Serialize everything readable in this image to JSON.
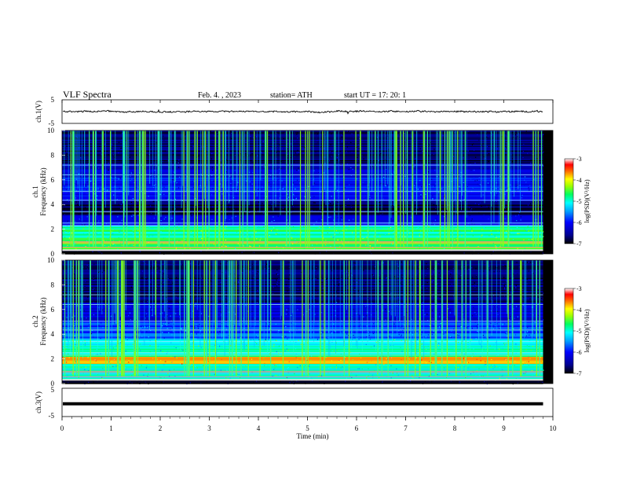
{
  "chart_data": {
    "type": "heatmap",
    "header": {
      "title": "VLF  Spectra",
      "date": "Feb. 4.  , 2023",
      "station": "station= ATH",
      "start": "start  UT  =    17: 20: 1"
    },
    "xlabel": "Time  (min)",
    "xlim": [
      0,
      10
    ],
    "xticks": [
      "0",
      "1",
      "2",
      "3",
      "4",
      "5",
      "6",
      "7",
      "8",
      "9",
      "10"
    ],
    "data_end_min": 9.8,
    "panels": [
      {
        "type": "line",
        "ylabel": "ch.1(V)",
        "ylim": [
          -5,
          5
        ],
        "yticks": [
          "5",
          "-5"
        ],
        "baseline": 0.0,
        "noise_amplitude": 0.6
      },
      {
        "type": "heatmap",
        "ylabel": [
          "ch.1",
          "Frequency  (kHz)"
        ],
        "ylim": [
          0,
          10
        ],
        "yticks": [
          "0",
          "2",
          "4",
          "6",
          "8",
          "10"
        ],
        "colorbar": {
          "label": "log(PSD)(V²/Hz)",
          "range": [
            -7,
            -3
          ],
          "ticks": [
            "-3",
            "-4",
            "-5",
            "-6",
            "-7"
          ]
        },
        "bands": [
          {
            "from": 0.0,
            "to": 0.3,
            "level": 0.0
          },
          {
            "from": 0.3,
            "to": 1.2,
            "level": 0.62
          },
          {
            "from": 1.2,
            "to": 2.3,
            "level": 0.55
          },
          {
            "from": 2.3,
            "to": 3.2,
            "level": 0.22
          },
          {
            "from": 3.2,
            "to": 4.3,
            "level": 0.05
          },
          {
            "from": 4.3,
            "to": 5.4,
            "level": 0.26
          },
          {
            "from": 5.4,
            "to": 6.6,
            "level": 0.24
          },
          {
            "from": 6.6,
            "to": 7.4,
            "level": 0.16
          },
          {
            "from": 7.4,
            "to": 10.0,
            "level": 0.08
          }
        ]
      },
      {
        "type": "heatmap",
        "ylabel": [
          "ch.2",
          "Frequency  (kHz)"
        ],
        "ylim": [
          0,
          10
        ],
        "yticks": [
          "0",
          "2",
          "4",
          "6",
          "8",
          "10"
        ],
        "colorbar": {
          "label": "log(PSD)(V²/Hz)",
          "range": [
            -7,
            -3
          ],
          "ticks": [
            "-3",
            "-4",
            "-5",
            "-6",
            "-7"
          ]
        },
        "bands": [
          {
            "from": 0.0,
            "to": 0.3,
            "level": 0.0
          },
          {
            "from": 0.3,
            "to": 1.6,
            "level": 0.5
          },
          {
            "from": 1.6,
            "to": 2.2,
            "level": 0.78
          },
          {
            "from": 2.2,
            "to": 3.6,
            "level": 0.5
          },
          {
            "from": 3.6,
            "to": 5.0,
            "level": 0.3
          },
          {
            "from": 5.0,
            "to": 6.6,
            "level": 0.2
          },
          {
            "from": 6.6,
            "to": 10.0,
            "level": 0.08
          }
        ]
      },
      {
        "type": "line",
        "ylabel": "ch.3(V)",
        "ylim": [
          -5,
          5
        ],
        "yticks": [
          "5",
          "-5"
        ],
        "baseline": -0.5,
        "noise_amplitude": 0.0
      }
    ],
    "colormap": [
      "#000000",
      "#000080",
      "#0000ff",
      "#0080ff",
      "#00ffff",
      "#00ff80",
      "#80ff00",
      "#ffff00",
      "#ff8000",
      "#ff0000",
      "#ff80c0",
      "#ffffff"
    ]
  }
}
